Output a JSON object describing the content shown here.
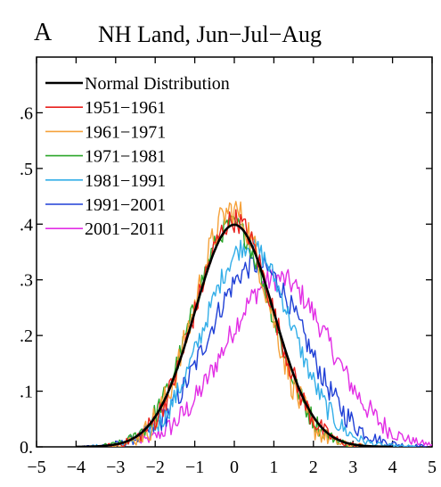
{
  "figure": {
    "panel_label": "A",
    "title": "NH Land, Jun−Jul−Aug"
  },
  "chart_data": {
    "type": "line",
    "title": "NH Land, Jun−Jul−Aug",
    "panel_label": "A",
    "xlabel": "",
    "ylabel": "",
    "xlim": [
      -5,
      5
    ],
    "ylim": [
      0,
      0.7
    ],
    "xticks": [
      -5,
      -4,
      -3,
      -2,
      -1,
      0,
      1,
      2,
      3,
      4,
      5
    ],
    "xtick_labels": [
      "−5",
      "−4",
      "−3",
      "−2",
      "−1",
      "0",
      "1",
      "2",
      "3",
      "4",
      "5"
    ],
    "yticks": [
      0,
      0.1,
      0.2,
      0.3,
      0.4,
      0.5,
      0.6
    ],
    "ytick_labels": [
      "0.",
      ".1",
      ".2",
      ".3",
      ".4",
      ".5",
      ".6"
    ],
    "grid": false,
    "legend_position": "top-left",
    "series": [
      {
        "name": "Normal Distribution",
        "color": "#000000",
        "kind": "normal",
        "mean": 0.0,
        "sd": 1.0,
        "noise": 0.0,
        "x_range": [
          -4,
          4
        ]
      },
      {
        "name": "1951−1961",
        "color": "#e8211d",
        "kind": "normal",
        "mean": 0.0,
        "sd": 0.98,
        "noise": 0.022,
        "x_range": [
          -3.2,
          3.2
        ]
      },
      {
        "name": "1961−1971",
        "color": "#f5a13a",
        "kind": "normal",
        "mean": -0.05,
        "sd": 0.94,
        "noise": 0.03,
        "x_range": [
          -3.2,
          3.3
        ]
      },
      {
        "name": "1971−1981",
        "color": "#2aa629",
        "kind": "normal",
        "mean": -0.05,
        "sd": 1.0,
        "noise": 0.02,
        "x_range": [
          -3.3,
          3.3
        ]
      },
      {
        "name": "1981−1991",
        "color": "#33aee8",
        "kind": "normal",
        "mean": 0.35,
        "sd": 1.1,
        "noise": 0.02,
        "x_range": [
          -3.6,
          4.6
        ]
      },
      {
        "name": "1991−2001",
        "color": "#1f3fd6",
        "kind": "normal",
        "mean": 0.55,
        "sd": 1.22,
        "noise": 0.022,
        "x_range": [
          -3.8,
          4.9
        ]
      },
      {
        "name": "2001−2011",
        "color": "#e22ee5",
        "kind": "normal",
        "mean": 1.1,
        "sd": 1.32,
        "noise": 0.022,
        "x_range": [
          -2.4,
          5.0
        ]
      }
    ]
  }
}
